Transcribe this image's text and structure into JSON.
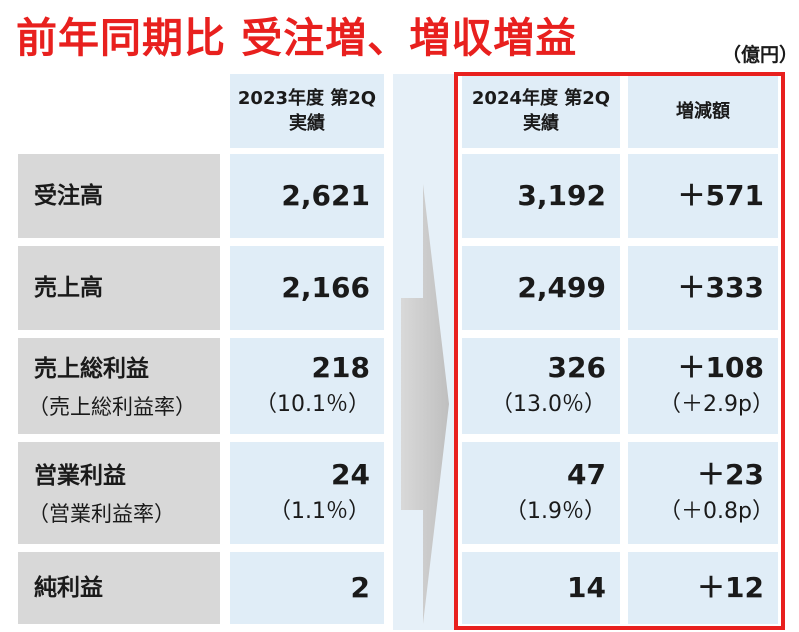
{
  "title": "前年同期比 受注増、増収増益",
  "unit": "（億円）",
  "columns": {
    "prev": [
      "2023年度 第2Q",
      "実績"
    ],
    "curr": [
      "2024年度 第2Q",
      "実績"
    ],
    "diff": "増減額"
  },
  "rows": [
    {
      "label": "受注高",
      "prev": "2,621",
      "curr": "3,192",
      "diff": "＋571"
    },
    {
      "label": "売上高",
      "prev": "2,166",
      "curr": "2,499",
      "diff": "＋333"
    },
    {
      "label": "売上総利益",
      "label_sub": "（売上総利益率）",
      "prev": "218",
      "prev_sub": "（10.1％）",
      "curr": "326",
      "curr_sub": "（13.0％）",
      "diff": "＋108",
      "diff_sub": "（＋2.9p）"
    },
    {
      "label": "営業利益",
      "label_sub": "（営業利益率）",
      "prev": "24",
      "prev_sub": "（1.1％）",
      "curr": "47",
      "curr_sub": "（1.9％）",
      "diff": "＋23",
      "diff_sub": "（＋0.8p）"
    },
    {
      "label": "純利益",
      "prev": "2",
      "curr": "14",
      "diff": "＋12"
    }
  ]
}
